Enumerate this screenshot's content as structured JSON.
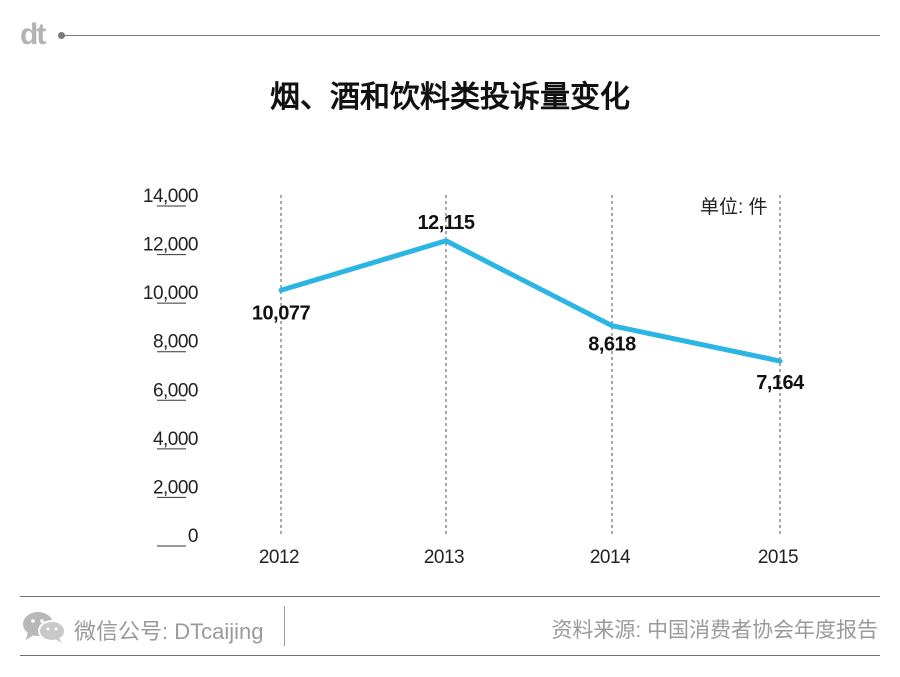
{
  "header": {
    "logo_text": "dt"
  },
  "title": "烟、酒和饮料类投诉量变化",
  "unit_label": "单位: 件",
  "chart_data": {
    "type": "line",
    "title": "烟、酒和饮料类投诉量变化",
    "categories": [
      "2012",
      "2013",
      "2014",
      "2015"
    ],
    "series": [
      {
        "values": [
          10077,
          12115,
          8618,
          7164
        ]
      }
    ],
    "data_labels": [
      "10,077",
      "12,115",
      "8,618",
      "7,164"
    ],
    "y_ticks": [
      0,
      2000,
      4000,
      6000,
      8000,
      10000,
      12000,
      14000
    ],
    "y_tick_labels": [
      "0",
      "2,000",
      "4,000",
      "6,000",
      "8,000",
      "10,000",
      "12,000",
      "14,000"
    ],
    "ylim": [
      0,
      14000
    ],
    "unit": "单位: 件",
    "grid": "vertical dashed lines at each year",
    "line_color": "#2bb5e3"
  },
  "footer": {
    "wechat_icon": "wechat-icon",
    "account_label": "微信公号: DTcaijing",
    "source": "资料来源: 中国消费者协会年度报告"
  }
}
